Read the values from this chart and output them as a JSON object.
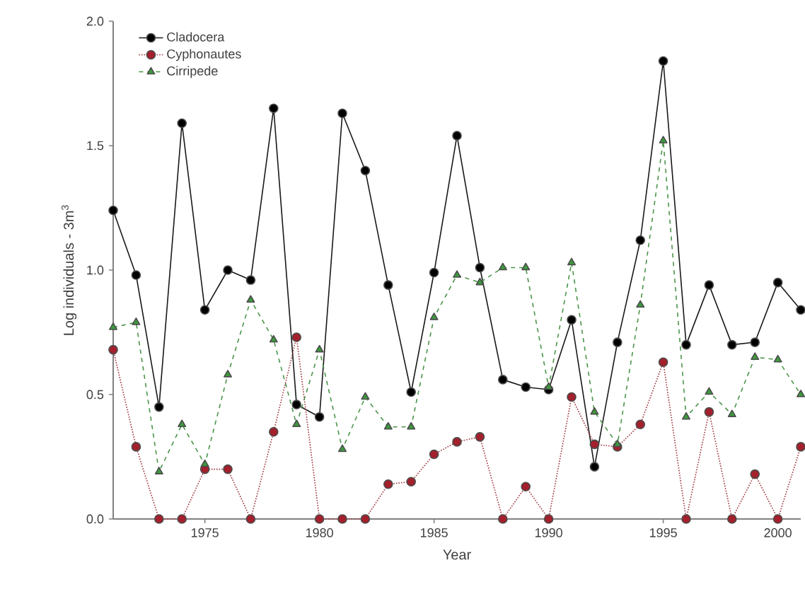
{
  "chart_data": {
    "type": "line",
    "xlabel": "Year",
    "ylabel": "Log individuals - 3m$^{3}$",
    "x": [
      1971,
      1972,
      1973,
      1974,
      1975,
      1976,
      1977,
      1978,
      1979,
      1980,
      1981,
      1982,
      1983,
      1984,
      1985,
      1986,
      1987,
      1988,
      1989,
      1990,
      1991,
      1992,
      1993,
      1994,
      1995,
      1996,
      1997,
      1998,
      1999,
      2000,
      2001
    ],
    "series": [
      {
        "name": "Cladocera",
        "color": "#000000",
        "marker": "circle",
        "line_style": "solid",
        "values": [
          1.24,
          0.98,
          0.45,
          1.59,
          0.84,
          1.0,
          0.96,
          1.65,
          0.46,
          0.41,
          1.63,
          1.4,
          0.94,
          0.51,
          0.99,
          1.54,
          1.01,
          0.56,
          0.53,
          0.52,
          0.8,
          0.21,
          0.71,
          1.12,
          1.84,
          0.7,
          0.94,
          0.7,
          0.71,
          0.95,
          0.84
        ]
      },
      {
        "name": "Cyphonautes",
        "color": "#a3202c",
        "marker": "circle",
        "line_style": "dotted",
        "values": [
          0.68,
          0.29,
          0,
          0,
          0.2,
          0.2,
          0,
          0.35,
          0.73,
          0,
          0,
          0,
          0.14,
          0.15,
          0.26,
          0.31,
          0.33,
          0,
          0.13,
          0,
          0.49,
          0.3,
          0.29,
          0.38,
          0.63,
          0,
          0.43,
          0,
          0.18,
          0,
          0.29
        ]
      },
      {
        "name": "Cirripede",
        "color": "#3c9a3c",
        "marker": "triangle",
        "line_style": "dashed",
        "values": [
          0.77,
          0.79,
          0.19,
          0.38,
          0.22,
          0.58,
          0.88,
          0.72,
          0.38,
          0.68,
          0.28,
          0.49,
          0.37,
          0.37,
          0.81,
          0.98,
          0.95,
          1.01,
          1.01,
          0.53,
          1.03,
          0.43,
          0.3,
          0.86,
          1.52,
          0.41,
          0.51,
          0.42,
          0.65,
          0.64,
          0.5
        ]
      }
    ],
    "xlim": [
      1971,
      2001
    ],
    "xticks": [
      1975,
      1980,
      1985,
      1990,
      1995,
      2000
    ],
    "ylim": [
      0,
      2.0
    ],
    "yticks": [
      {
        "value": 0,
        "label": "0.0"
      },
      {
        "value": 0.5,
        "label": "0.5"
      },
      {
        "value": 1.0,
        "label": "1.0"
      },
      {
        "value": 1.5,
        "label": "1.5"
      },
      {
        "value": 2.0,
        "label": "2.0"
      }
    ],
    "legend": "top left",
    "grid": false
  }
}
